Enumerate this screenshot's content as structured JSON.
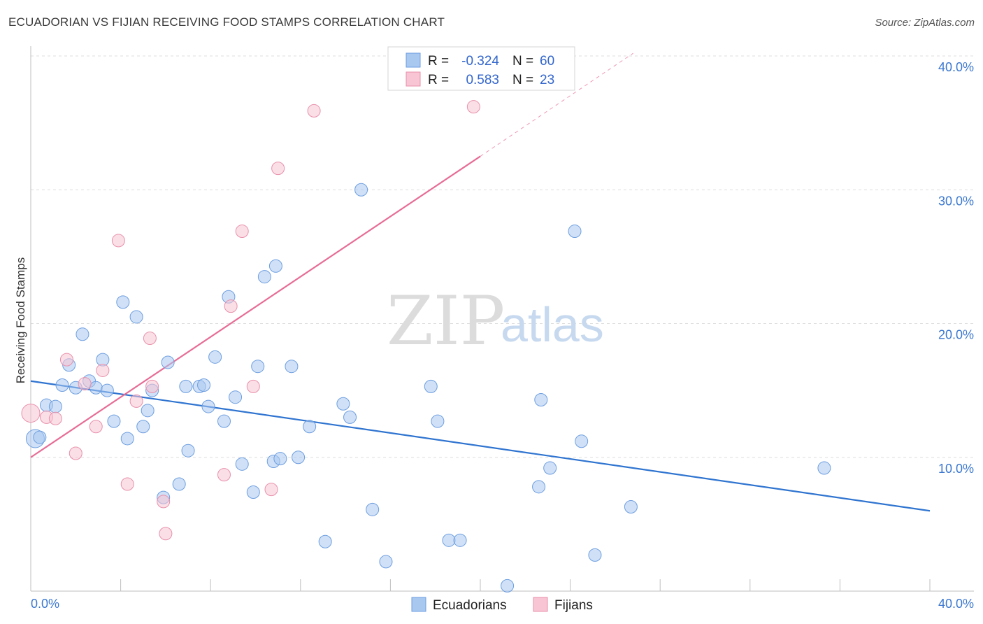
{
  "header": {
    "title": "ECUADORIAN VS FIJIAN RECEIVING FOOD STAMPS CORRELATION CHART",
    "source": "Source: ZipAtlas.com"
  },
  "watermark": {
    "zip": "ZIP",
    "atlas": "atlas"
  },
  "legend": {
    "rows": [
      {
        "r_label": "R =",
        "r_value": "-0.324",
        "n_label": "N =",
        "n_value": "60",
        "color": "#a9c8f0",
        "stroke": "#6d9ee0"
      },
      {
        "r_label": "R =",
        "r_value": "0.583",
        "n_label": "N =",
        "n_value": "23",
        "color": "#f8c5d4",
        "stroke": "#e890ab"
      }
    ]
  },
  "bottom_legend": {
    "items": [
      "Ecuadorians",
      "Fijians"
    ]
  },
  "chart_data": {
    "type": "scatter",
    "title": "ECUADORIAN VS FIJIAN RECEIVING FOOD STAMPS CORRELATION CHART",
    "xlabel": "",
    "ylabel": "Receiving Food Stamps",
    "xlim": [
      0,
      40
    ],
    "ylim": [
      0,
      40
    ],
    "x_tick_labels": [
      "0.0%",
      "40.0%"
    ],
    "y_ticks": [
      10,
      20,
      30,
      40
    ],
    "y_tick_labels": [
      "10.0%",
      "20.0%",
      "30.0%",
      "40.0%"
    ],
    "grid": true,
    "legend_position": "top-center",
    "series": [
      {
        "name": "Ecuadorians",
        "color": "#a9c8f0",
        "edge": "#6d9ee0",
        "line_color": "#2f74d0",
        "trend": {
          "x": [
            0,
            40
          ],
          "y": [
            15.7,
            6.0
          ]
        },
        "points": [
          [
            0.2,
            11.4
          ],
          [
            0.4,
            11.5
          ],
          [
            0.7,
            13.9
          ],
          [
            1.1,
            13.8
          ],
          [
            1.4,
            15.4
          ],
          [
            1.7,
            16.9
          ],
          [
            2.0,
            15.2
          ],
          [
            2.3,
            19.2
          ],
          [
            2.6,
            15.7
          ],
          [
            2.9,
            15.2
          ],
          [
            3.2,
            17.3
          ],
          [
            3.4,
            15.0
          ],
          [
            3.7,
            12.7
          ],
          [
            4.1,
            21.6
          ],
          [
            4.3,
            11.4
          ],
          [
            4.7,
            20.5
          ],
          [
            5.0,
            12.3
          ],
          [
            5.2,
            13.5
          ],
          [
            5.4,
            15.0
          ],
          [
            5.9,
            7.0
          ],
          [
            6.1,
            17.1
          ],
          [
            6.6,
            8.0
          ],
          [
            6.9,
            15.3
          ],
          [
            7.0,
            10.5
          ],
          [
            7.5,
            15.3
          ],
          [
            7.7,
            15.4
          ],
          [
            7.9,
            13.8
          ],
          [
            8.2,
            17.5
          ],
          [
            8.6,
            12.7
          ],
          [
            8.8,
            22.0
          ],
          [
            9.1,
            14.5
          ],
          [
            9.4,
            9.5
          ],
          [
            9.9,
            7.4
          ],
          [
            10.1,
            16.8
          ],
          [
            10.4,
            23.5
          ],
          [
            10.8,
            9.7
          ],
          [
            10.9,
            24.3
          ],
          [
            11.1,
            9.9
          ],
          [
            11.6,
            16.8
          ],
          [
            11.9,
            10.0
          ],
          [
            12.4,
            12.3
          ],
          [
            13.1,
            3.7
          ],
          [
            13.9,
            14.0
          ],
          [
            14.2,
            13.0
          ],
          [
            14.7,
            30.0
          ],
          [
            15.2,
            6.1
          ],
          [
            15.8,
            2.2
          ],
          [
            17.8,
            15.3
          ],
          [
            18.1,
            12.7
          ],
          [
            18.6,
            3.8
          ],
          [
            19.1,
            3.8
          ],
          [
            21.2,
            0.4
          ],
          [
            22.6,
            7.8
          ],
          [
            22.7,
            14.3
          ],
          [
            23.1,
            9.2
          ],
          [
            24.2,
            26.9
          ],
          [
            24.5,
            11.2
          ],
          [
            25.1,
            2.7
          ],
          [
            26.7,
            6.3
          ],
          [
            35.3,
            9.2
          ]
        ]
      },
      {
        "name": "Fijians",
        "color": "#f8c5d4",
        "edge": "#e890ab",
        "line_color": "#e76c95",
        "trend": {
          "x": [
            0,
            20
          ],
          "y": [
            10.0,
            32.5
          ]
        },
        "trend_dashed": {
          "x": [
            20,
            26.8
          ],
          "y": [
            32.5,
            40.2
          ]
        },
        "points": [
          [
            0.0,
            13.3
          ],
          [
            0.7,
            13.0
          ],
          [
            1.1,
            12.9
          ],
          [
            1.6,
            17.3
          ],
          [
            2.0,
            10.3
          ],
          [
            2.4,
            15.5
          ],
          [
            2.9,
            12.3
          ],
          [
            3.2,
            16.5
          ],
          [
            3.9,
            26.2
          ],
          [
            4.3,
            8.0
          ],
          [
            4.7,
            14.2
          ],
          [
            5.3,
            18.9
          ],
          [
            5.4,
            15.3
          ],
          [
            5.9,
            6.7
          ],
          [
            6.0,
            4.3
          ],
          [
            8.6,
            8.7
          ],
          [
            8.9,
            21.3
          ],
          [
            9.4,
            26.9
          ],
          [
            9.9,
            15.3
          ],
          [
            10.7,
            7.6
          ],
          [
            11.0,
            31.6
          ],
          [
            12.6,
            35.9
          ],
          [
            19.7,
            36.2
          ]
        ]
      }
    ]
  }
}
